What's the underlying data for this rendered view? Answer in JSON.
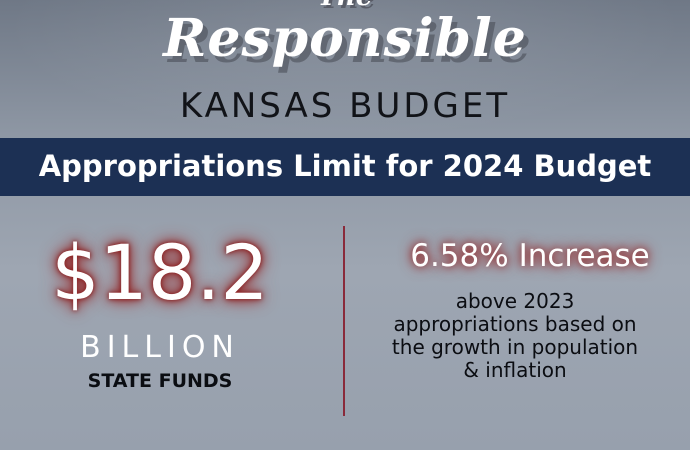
{
  "header": {
    "the": "The",
    "responsible": "Responsible",
    "subtitle": "KANSAS BUDGET"
  },
  "banner": {
    "title": "Appropriations Limit for 2024 Budget"
  },
  "left": {
    "amount": "$18.2",
    "unit": "BILLION",
    "label": "STATE FUNDS"
  },
  "right": {
    "increase": "6.58% Increase",
    "lines": [
      "above 2023",
      "appropriations based on",
      "the growth in population",
      "& inflation"
    ]
  },
  "colors": {
    "banner": "#1c3054",
    "glow": "#a52a2a",
    "divider": "#8a2a3a"
  }
}
